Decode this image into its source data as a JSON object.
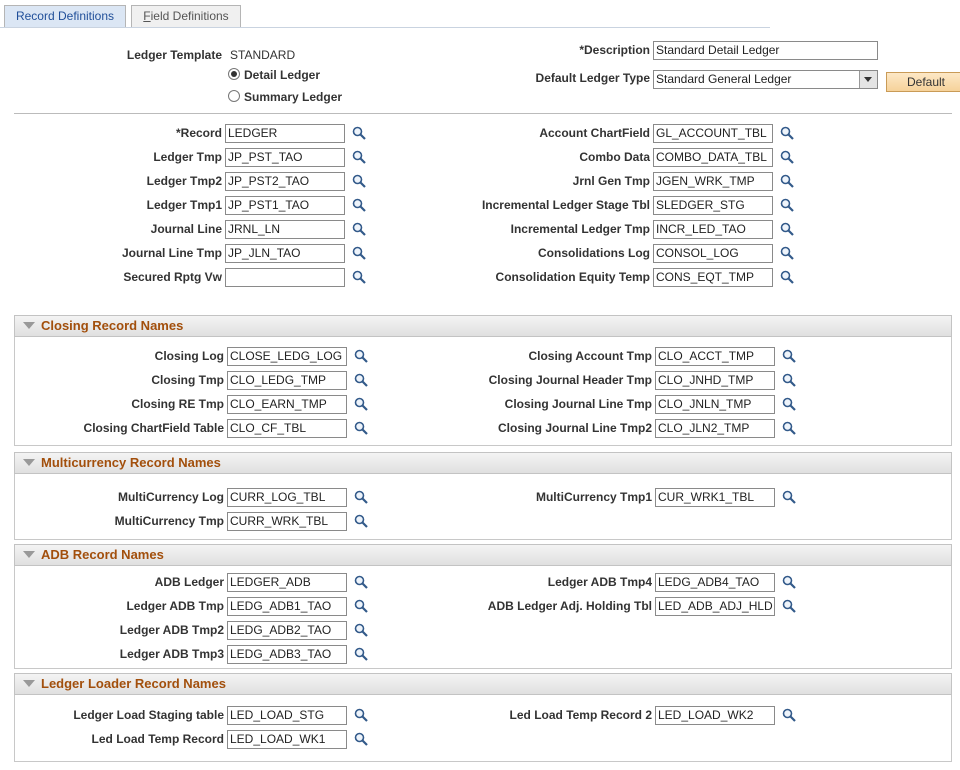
{
  "tabs": [
    {
      "label": "Record Definitions"
    },
    {
      "label": "Field Definitions"
    }
  ],
  "header": {
    "ledger_template_label": "Ledger Template",
    "ledger_template_value": "STANDARD",
    "ledger_options": [
      "Detail Ledger",
      "Summary Ledger"
    ],
    "description_label": "*Description",
    "description_value": "Standard Detail Ledger",
    "default_type_label": "Default Ledger Type",
    "default_type_value": "Standard General Ledger",
    "default_button": "Default"
  },
  "records": {
    "left": [
      {
        "label": "*Record",
        "value": "LEDGER"
      },
      {
        "label": "Ledger Tmp",
        "value": "JP_PST_TAO"
      },
      {
        "label": "Ledger Tmp2",
        "value": "JP_PST2_TAO"
      },
      {
        "label": "Ledger Tmp1",
        "value": "JP_PST1_TAO"
      },
      {
        "label": "Journal Line",
        "value": "JRNL_LN"
      },
      {
        "label": "Journal Line Tmp",
        "value": "JP_JLN_TAO"
      },
      {
        "label": "Secured Rptg Vw",
        "value": null
      }
    ],
    "right": [
      {
        "label": "Account ChartField",
        "value": "GL_ACCOUNT_TBL"
      },
      {
        "label": "Combo Data",
        "value": "COMBO_DATA_TBL"
      },
      {
        "label": "Jrnl Gen Tmp",
        "value": "JGEN_WRK_TMP"
      },
      {
        "label": "Incremental Ledger Stage Tbl",
        "value": "SLEDGER_STG"
      },
      {
        "label": "Incremental Ledger Tmp",
        "value": "INCR_LED_TAO"
      },
      {
        "label": "Consolidations Log",
        "value": "CONSOL_LOG"
      },
      {
        "label": "Consolidation Equity Temp",
        "value": "CONS_EQT_TMP"
      }
    ]
  },
  "sections": [
    {
      "title": "Closing Record Names",
      "left": [
        {
          "label": "Closing Log",
          "value": "CLOSE_LEDG_LOG"
        },
        {
          "label": "Closing Tmp",
          "value": "CLO_LEDG_TMP"
        },
        {
          "label": "Closing RE Tmp",
          "value": "CLO_EARN_TMP"
        },
        {
          "label": "Closing ChartField Table",
          "value": "CLO_CF_TBL"
        }
      ],
      "right": [
        {
          "label": "Closing Account Tmp",
          "value": "CLO_ACCT_TMP"
        },
        {
          "label": "Closing Journal Header Tmp",
          "value": "CLO_JNHD_TMP"
        },
        {
          "label": "Closing Journal Line Tmp",
          "value": "CLO_JNLN_TMP"
        },
        {
          "label": "Closing Journal Line Tmp2",
          "value": "CLO_JLN2_TMP"
        }
      ]
    },
    {
      "title": "Multicurrency Record Names",
      "left": [
        {
          "label": "MultiCurrency Log",
          "value": "CURR_LOG_TBL"
        },
        {
          "label": "MultiCurrency Tmp",
          "value": "CURR_WRK_TBL"
        }
      ],
      "right": [
        {
          "label": "MultiCurrency Tmp1",
          "value": "CUR_WRK1_TBL"
        }
      ]
    },
    {
      "title": "ADB Record Names",
      "left": [
        {
          "label": "ADB Ledger",
          "value": "LEDGER_ADB"
        },
        {
          "label": "Ledger ADB Tmp",
          "value": "LEDG_ADB1_TAO"
        },
        {
          "label": "Ledger ADB Tmp2",
          "value": "LEDG_ADB2_TAO"
        },
        {
          "label": "Ledger ADB Tmp3",
          "value": "LEDG_ADB3_TAO"
        }
      ],
      "right": [
        {
          "label": "Ledger ADB Tmp4",
          "value": "LEDG_ADB4_TAO"
        },
        {
          "label": "ADB Ledger Adj. Holding Tbl",
          "value": "LED_ADB_ADJ_HLD"
        }
      ]
    },
    {
      "title": "Ledger Loader Record Names",
      "left": [
        {
          "label": "Ledger Load Staging table",
          "value": "LED_LOAD_STG"
        },
        {
          "label": "Led Load Temp Record",
          "value": "LED_LOAD_WK1"
        }
      ],
      "right": [
        {
          "label": "Led Load Temp Record 2",
          "value": "LED_LOAD_WK2"
        }
      ]
    }
  ]
}
